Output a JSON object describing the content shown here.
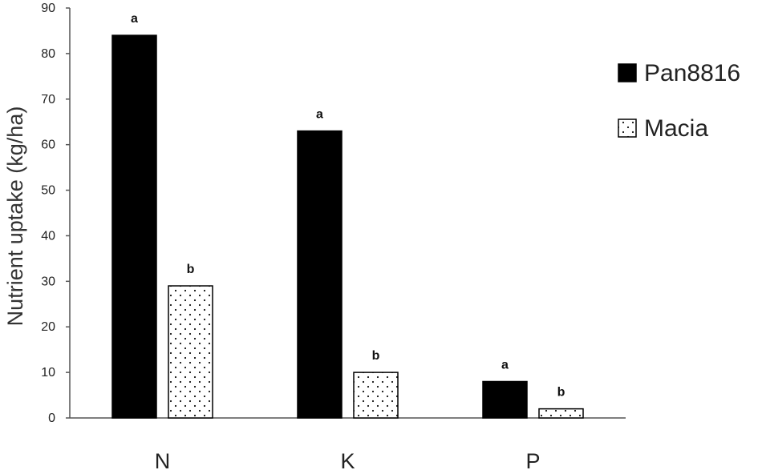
{
  "chart_data": {
    "type": "bar",
    "ylabel": "Nutrient uptake (kg/ha)",
    "xlabel": "",
    "ylim": [
      0,
      90
    ],
    "yticks": [
      0,
      10,
      20,
      30,
      40,
      50,
      60,
      70,
      80,
      90
    ],
    "categories": [
      "N",
      "K",
      "P"
    ],
    "series": [
      {
        "name": "Pan8816",
        "values": [
          84,
          63,
          8
        ],
        "labels": [
          "a",
          "a",
          "a"
        ],
        "fill": "#000000",
        "pattern": "solid"
      },
      {
        "name": "Macia",
        "values": [
          29,
          10,
          2
        ],
        "labels": [
          "b",
          "b",
          "b"
        ],
        "fill": "#ffffff",
        "pattern": "dotted"
      }
    ],
    "legend_position": "top-right",
    "grid": false
  }
}
